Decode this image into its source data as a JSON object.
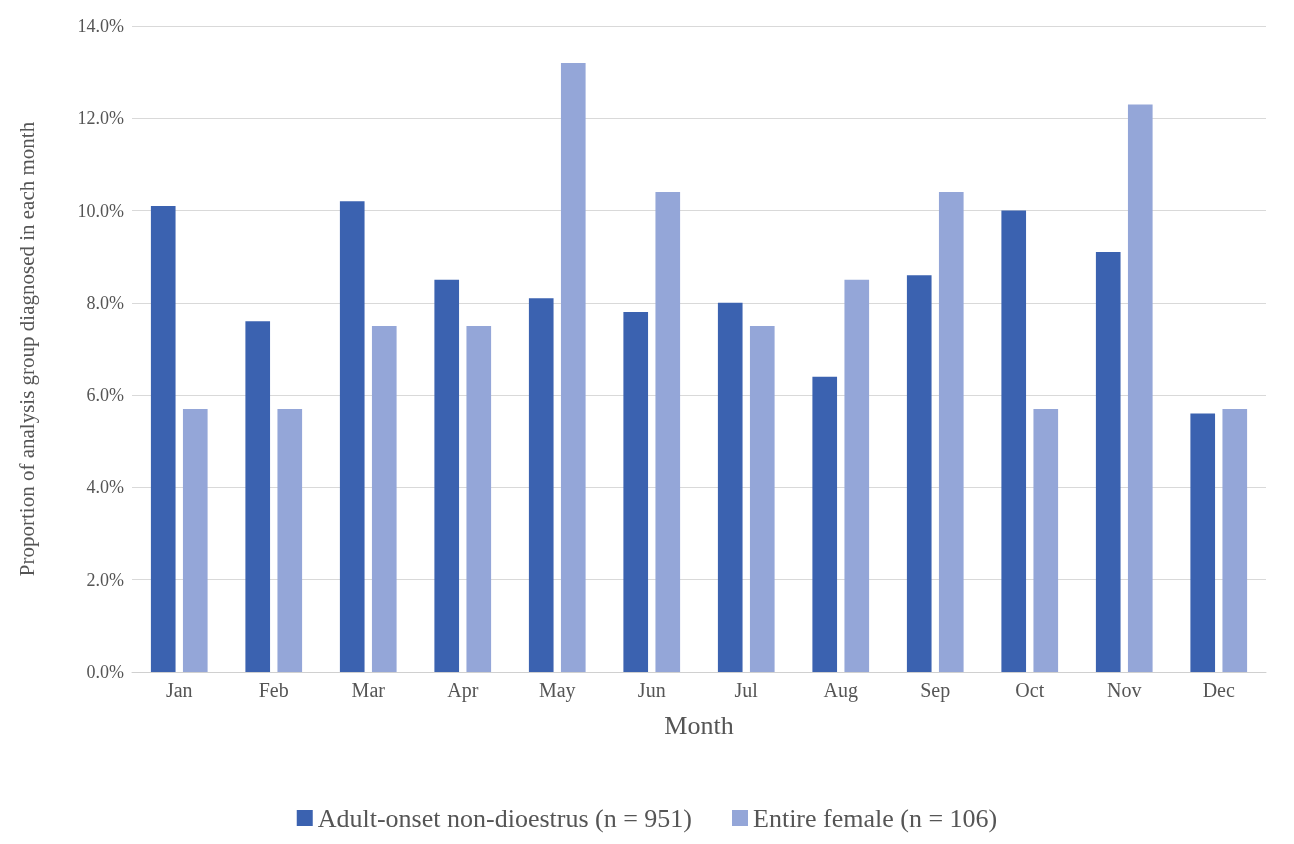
{
  "chart_data": {
    "type": "bar",
    "xlabel": "Month",
    "ylabel": "Proportion of analysis group diagnosed in each month",
    "categories": [
      "Jan",
      "Feb",
      "Mar",
      "Apr",
      "May",
      "Jun",
      "Jul",
      "Aug",
      "Sep",
      "Oct",
      "Nov",
      "Dec"
    ],
    "series": [
      {
        "name": "Adult-onset non-dioestrus (n = 951)",
        "color": "#3b62b0",
        "values": [
          10.1,
          7.6,
          10.2,
          8.5,
          8.1,
          7.8,
          8.0,
          6.4,
          8.6,
          10.0,
          9.1,
          5.6
        ]
      },
      {
        "name": "Entire female (n = 106)",
        "color": "#94a6d8",
        "values": [
          5.7,
          5.7,
          7.5,
          7.5,
          13.2,
          10.4,
          7.5,
          8.5,
          10.4,
          5.7,
          12.3,
          5.7
        ]
      }
    ],
    "ylim": [
      0,
      14
    ],
    "yticks": [
      {
        "value": 0,
        "label": "0.0%"
      },
      {
        "value": 2,
        "label": "2.0%"
      },
      {
        "value": 4,
        "label": "4.0%"
      },
      {
        "value": 6,
        "label": "6.0%"
      },
      {
        "value": 8,
        "label": "8.0%"
      },
      {
        "value": 10,
        "label": "10.0%"
      },
      {
        "value": 12,
        "label": "12.0%"
      },
      {
        "value": 14,
        "label": "14.0%"
      }
    ],
    "grid": "y",
    "legend": "bottom"
  }
}
